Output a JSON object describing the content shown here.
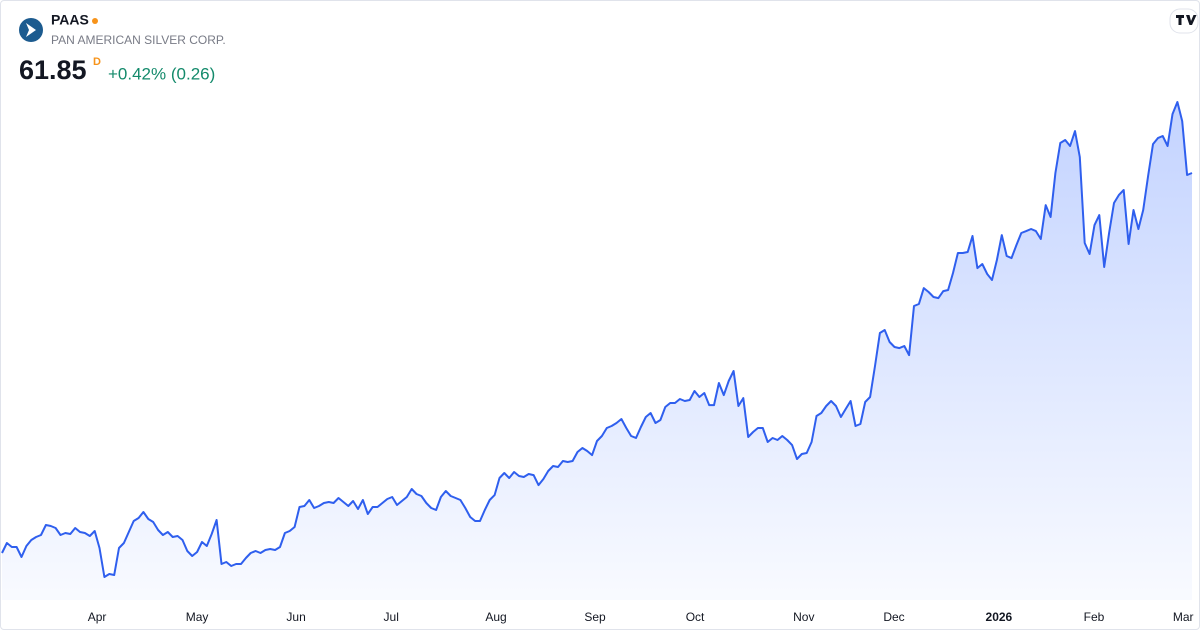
{
  "header": {
    "symbol": "PAAS",
    "name": "PAN AMERICAN SILVER CORP.",
    "price": "61.85",
    "interval": "D",
    "change": "+0.42% (0.26)"
  },
  "chart_data": {
    "type": "line",
    "color": "#2f5fee",
    "values": [
      24.99,
      25.96,
      25.57,
      25.57,
      24.6,
      25.67,
      26.25,
      26.54,
      26.73,
      27.7,
      27.61,
      27.41,
      26.73,
      26.93,
      26.83,
      27.41,
      27.03,
      26.93,
      26.64,
      27.12,
      25.47,
      22.66,
      22.95,
      22.85,
      25.47,
      25.96,
      27.03,
      28.09,
      28.38,
      28.97,
      28.29,
      28.0,
      27.22,
      26.73,
      27.03,
      26.54,
      26.64,
      26.25,
      25.18,
      24.7,
      25.09,
      26.06,
      25.67,
      26.83,
      28.19,
      23.92,
      24.12,
      23.73,
      23.92,
      23.92,
      24.5,
      24.99,
      25.18,
      24.99,
      25.28,
      25.38,
      25.28,
      25.57,
      26.93,
      27.12,
      27.51,
      29.45,
      29.55,
      30.13,
      29.35,
      29.55,
      29.84,
      29.94,
      29.84,
      30.32,
      29.94,
      29.55,
      30.03,
      29.26,
      30.13,
      28.77,
      29.45,
      29.45,
      29.84,
      30.23,
      30.42,
      29.64,
      30.03,
      30.42,
      31.2,
      30.71,
      30.52,
      29.84,
      29.35,
      29.16,
      30.42,
      31.0,
      30.52,
      30.32,
      30.13,
      29.35,
      28.48,
      28.09,
      28.09,
      29.16,
      30.13,
      30.61,
      32.26,
      32.75,
      32.26,
      32.85,
      32.46,
      32.36,
      32.65,
      32.55,
      31.58,
      32.17,
      32.94,
      33.43,
      33.33,
      33.91,
      33.82,
      33.91,
      34.79,
      35.17,
      34.88,
      34.49,
      35.85,
      36.34,
      37.11,
      37.31,
      37.6,
      37.99,
      37.11,
      36.34,
      36.14,
      37.21,
      38.18,
      38.57,
      37.6,
      37.89,
      39.15,
      39.54,
      39.54,
      39.93,
      39.73,
      39.83,
      40.7,
      40.12,
      40.51,
      39.34,
      39.34,
      41.48,
      40.31,
      41.67,
      42.64,
      39.25,
      40.02,
      36.24,
      36.73,
      37.11,
      37.11,
      35.76,
      36.14,
      35.95,
      36.34,
      35.95,
      35.46,
      34.11,
      34.59,
      34.69,
      35.76,
      38.28,
      38.57,
      39.25,
      39.73,
      39.25,
      38.18,
      38.96,
      39.73,
      37.31,
      37.5,
      39.64,
      40.12,
      43.13,
      46.33,
      46.62,
      45.46,
      44.97,
      44.87,
      45.07,
      44.19,
      48.95,
      49.14,
      50.69,
      50.31,
      49.82,
      49.72,
      50.4,
      50.5,
      52.15,
      54.09,
      54.09,
      54.19,
      55.74,
      52.63,
      53.02,
      52.05,
      51.47,
      53.41,
      55.83,
      53.8,
      53.6,
      54.86,
      56.03,
      56.22,
      56.42,
      56.22,
      55.45,
      58.74,
      57.58,
      61.85,
      64.76,
      65.05,
      64.47,
      65.92,
      63.4,
      55.06,
      53.99,
      56.8,
      57.77,
      52.73,
      56.03,
      58.94,
      59.71,
      60.2,
      54.96,
      58.26,
      56.42,
      58.26,
      61.56,
      64.66,
      65.24,
      65.44,
      64.47,
      67.57,
      68.74,
      66.89,
      61.66,
      61.85
    ],
    "xticks": [
      {
        "value": 19.5,
        "label": "Apr"
      },
      {
        "value": 40,
        "label": "May"
      },
      {
        "value": 60.3,
        "label": "Jun"
      },
      {
        "value": 79.8,
        "label": "Jul"
      },
      {
        "value": 101.3,
        "label": "Aug"
      },
      {
        "value": 121.6,
        "label": "Sep"
      },
      {
        "value": 142.1,
        "label": "Oct"
      },
      {
        "value": 164.4,
        "label": "Nov"
      },
      {
        "value": 182.9,
        "label": "Dec"
      },
      {
        "value": 204.4,
        "label": "2026"
      },
      {
        "value": 223.9,
        "label": "Feb"
      },
      {
        "value": 242.2,
        "label": "Mar"
      }
    ]
  }
}
